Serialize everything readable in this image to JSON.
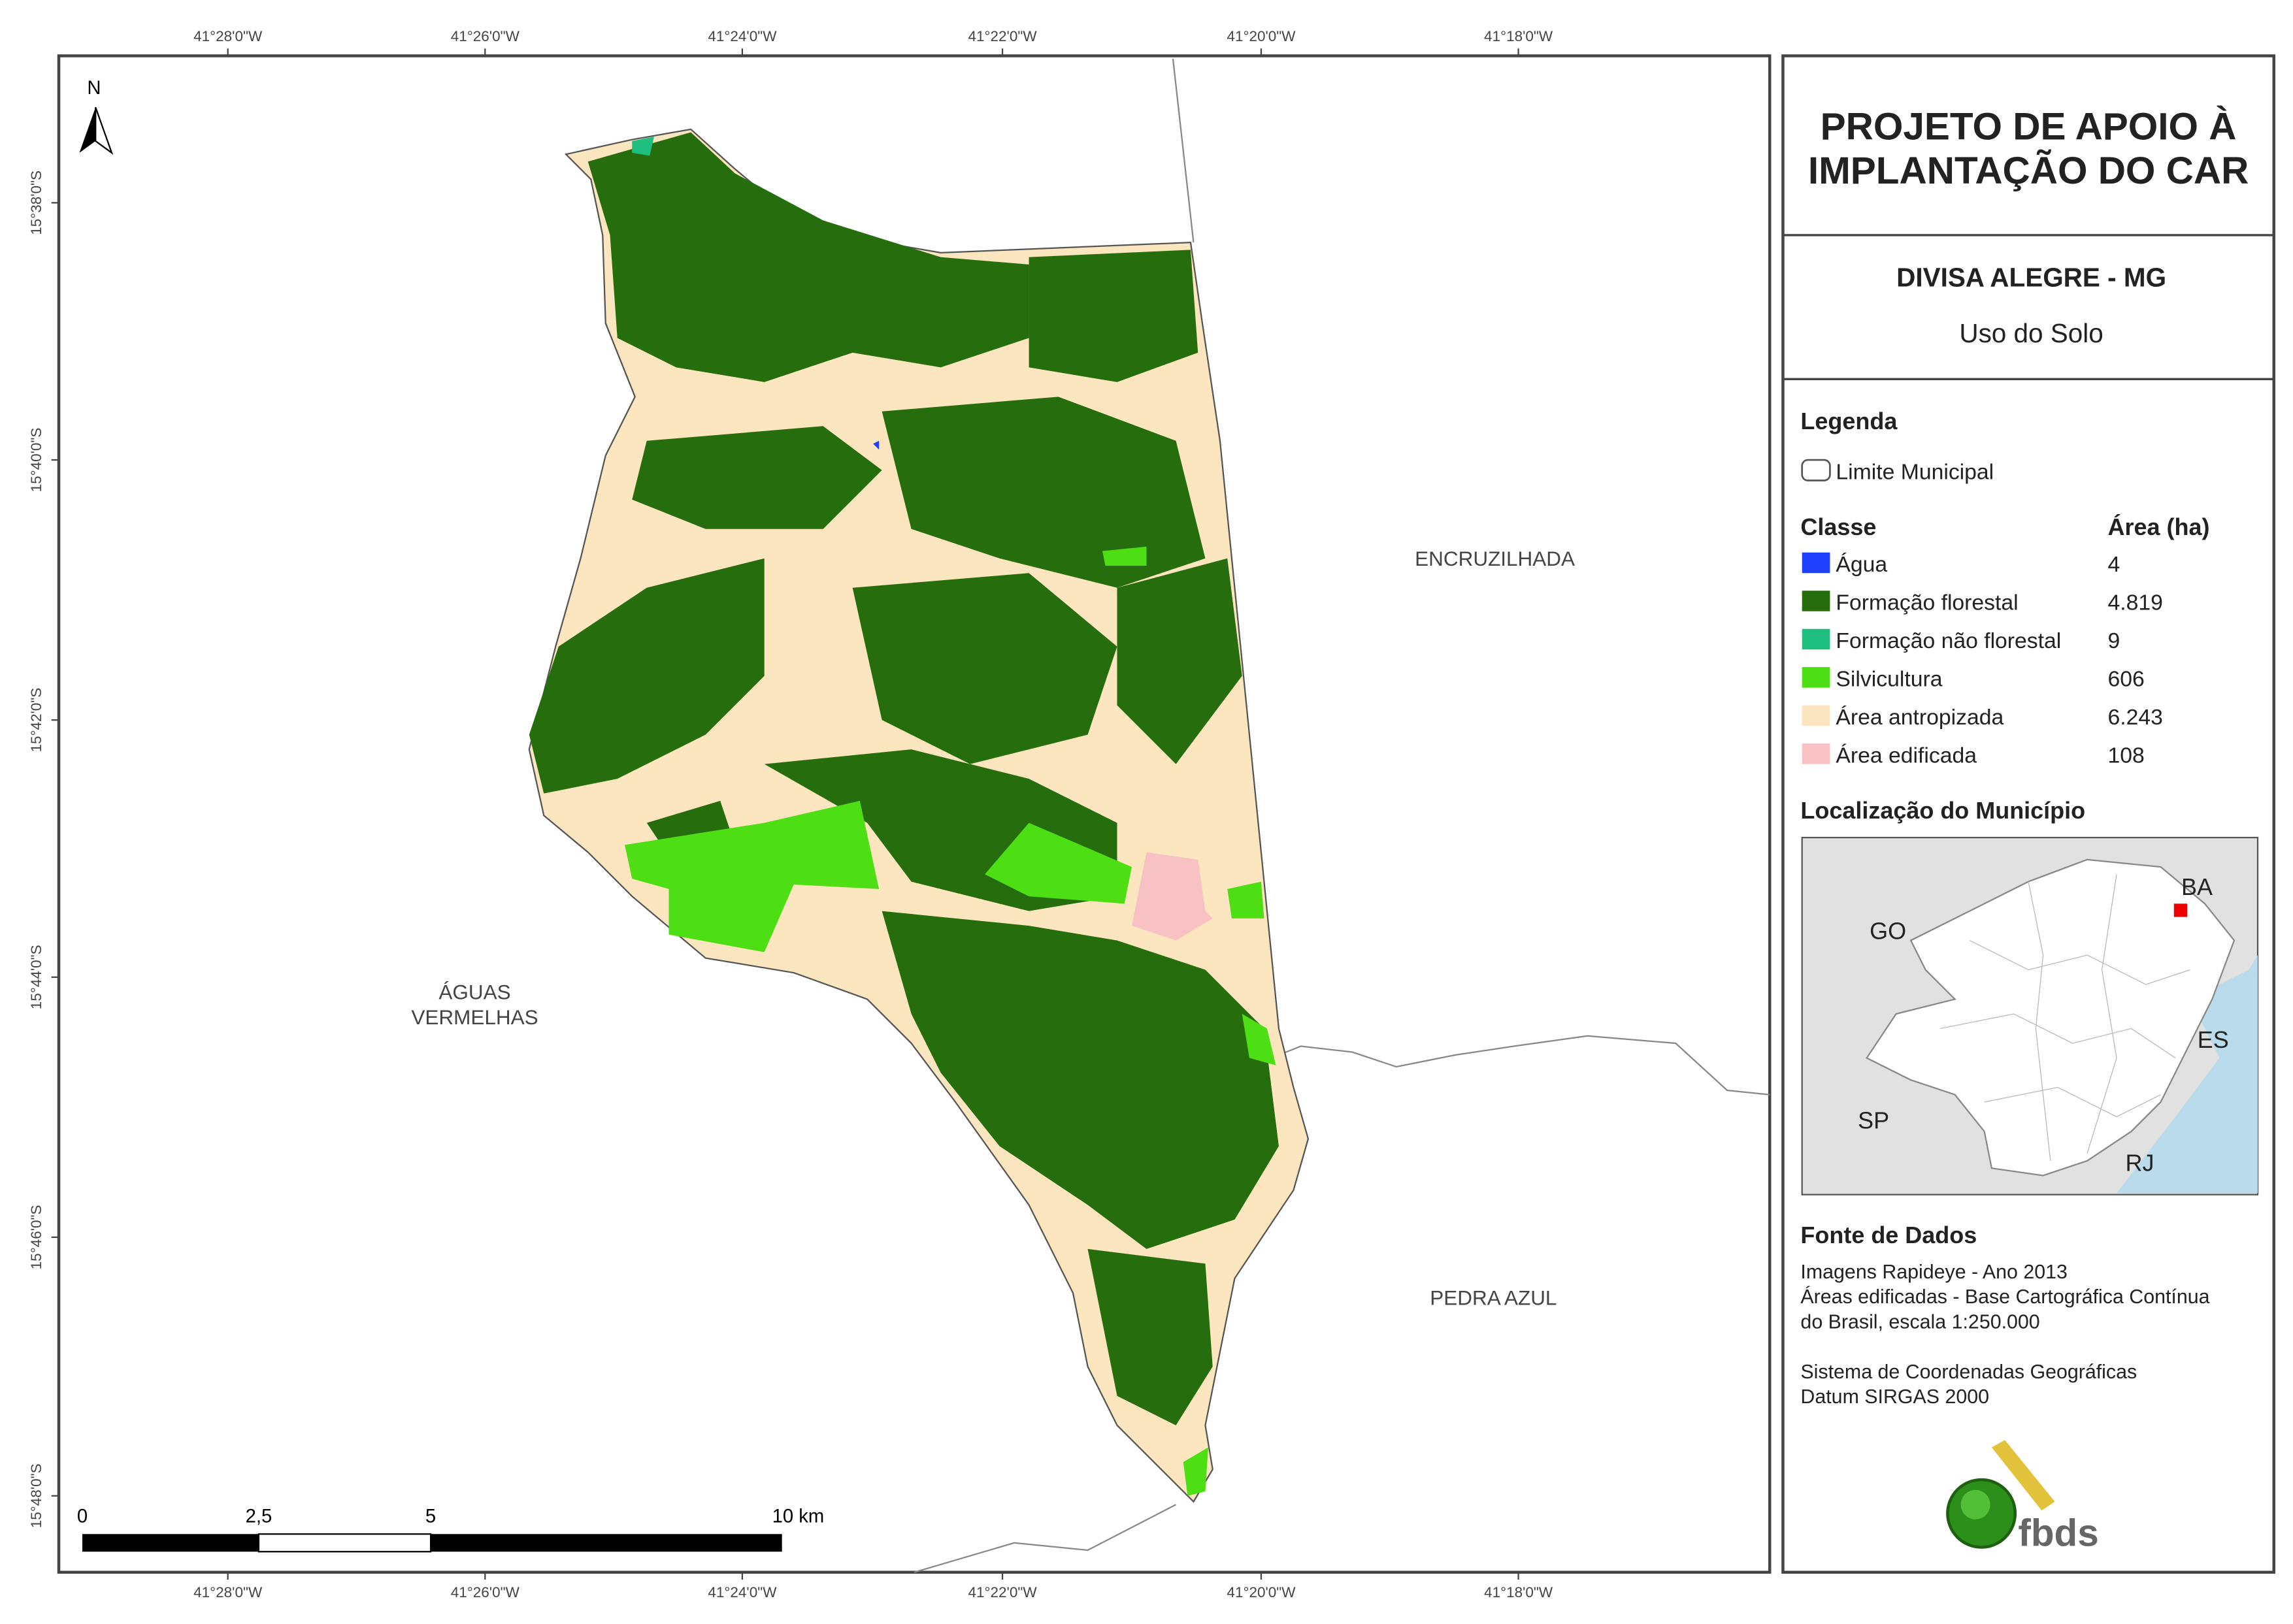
{
  "map": {
    "lon_labels": [
      "41°28'0\"W",
      "41°26'0\"W",
      "41°24'0\"W",
      "41°22'0\"W",
      "41°20'0\"W",
      "41°18'0\"W"
    ],
    "lat_labels": [
      "15°38'0\"S",
      "15°40'0\"S",
      "15°42'0\"S",
      "15°44'0\"S",
      "15°46'0\"S",
      "15°48'0\"S"
    ],
    "north": "N",
    "places": [
      {
        "lines": [
          "ENCRUZILHADA"
        ]
      },
      {
        "lines": [
          "ÁGUAS",
          "VERMELHAS"
        ]
      },
      {
        "lines": [
          "PEDRA AZUL"
        ]
      }
    ],
    "scale_labels": [
      "0",
      "2,5",
      "5",
      "10 km"
    ]
  },
  "panel": {
    "title": [
      "PROJETO DE APOIO À",
      "IMPLANTAÇÃO DO CAR"
    ],
    "municipality": "DIVISA ALEGRE - MG",
    "subject": "Uso do Solo",
    "legend_title": "Legenda",
    "boundary_label": "Limite Municipal",
    "class_header": "Classe",
    "area_header": "Área (ha)",
    "classes": [
      {
        "name": "Água",
        "area": "4"
      },
      {
        "name": "Formação florestal",
        "area": "4.819"
      },
      {
        "name": "Formação não florestal",
        "area": "9"
      },
      {
        "name": "Silvicultura",
        "area": "606"
      },
      {
        "name": "Área antropizada",
        "area": "6.243"
      },
      {
        "name": "Área edificada",
        "area": "108"
      }
    ],
    "location_title": "Localização do Município",
    "states": [
      "GO",
      "BA",
      "ES",
      "SP",
      "RJ"
    ],
    "source_title": "Fonte de Dados",
    "source_lines": [
      "Imagens Rapideye - Ano 2013",
      "Áreas edificadas - Base Cartográfica Contínua",
      "do Brasil, escala 1:250.000",
      "",
      "Sistema de Coordenadas Geográficas",
      "Datum SIRGAS 2000"
    ],
    "logo": "fbds"
  }
}
